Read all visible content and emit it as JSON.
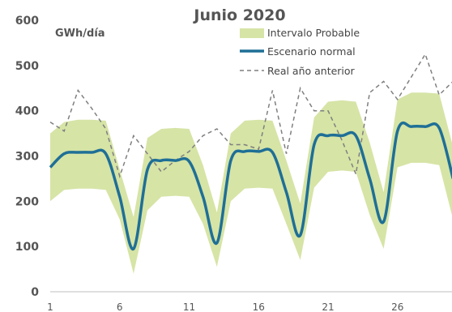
{
  "chart_data": {
    "type": "line",
    "title": "Junio 2020",
    "ylabel": "GWh/día",
    "xlabel": "",
    "ylim": [
      0,
      600
    ],
    "xlim": [
      1,
      30
    ],
    "y_ticks": [
      "0",
      "100",
      "200",
      "300",
      "400",
      "500",
      "600"
    ],
    "x_ticks": [
      "1",
      "6",
      "11",
      "16",
      "21",
      "26"
    ],
    "legend_position": "top-right",
    "x": [
      1,
      2,
      3,
      4,
      5,
      6,
      7,
      8,
      9,
      10,
      11,
      12,
      13,
      14,
      15,
      16,
      17,
      18,
      19,
      20,
      21,
      22,
      23,
      24,
      25,
      26,
      27,
      28,
      29,
      30
    ],
    "series": [
      {
        "name": "Intervalo Probable",
        "type": "band",
        "color": "#d6e4a6",
        "lower": [
          200,
          225,
          228,
          228,
          225,
          160,
          40,
          180,
          210,
          212,
          210,
          150,
          55,
          200,
          228,
          230,
          228,
          150,
          70,
          230,
          265,
          268,
          265,
          170,
          95,
          275,
          285,
          285,
          280,
          160
        ],
        "upper": [
          350,
          375,
          380,
          380,
          378,
          270,
          165,
          340,
          360,
          362,
          360,
          280,
          175,
          350,
          378,
          380,
          378,
          290,
          195,
          385,
          420,
          423,
          420,
          330,
          220,
          425,
          440,
          440,
          438,
          320
        ]
      },
      {
        "name": "Escenario normal",
        "type": "line",
        "color": "#1f6f96",
        "values": [
          275,
          305,
          308,
          308,
          305,
          210,
          95,
          270,
          290,
          290,
          288,
          210,
          108,
          290,
          310,
          310,
          308,
          220,
          125,
          325,
          345,
          345,
          345,
          250,
          155,
          355,
          365,
          365,
          362,
          250
        ]
      },
      {
        "name": "Real año anterior",
        "type": "dashed",
        "color": "#7f7f7f",
        "values": [
          375,
          355,
          445,
          405,
          360,
          255,
          345,
          305,
          265,
          290,
          310,
          345,
          360,
          325,
          325,
          315,
          445,
          305,
          450,
          400,
          400,
          335,
          260,
          440,
          465,
          425,
          475,
          525,
          435,
          465
        ]
      }
    ]
  }
}
